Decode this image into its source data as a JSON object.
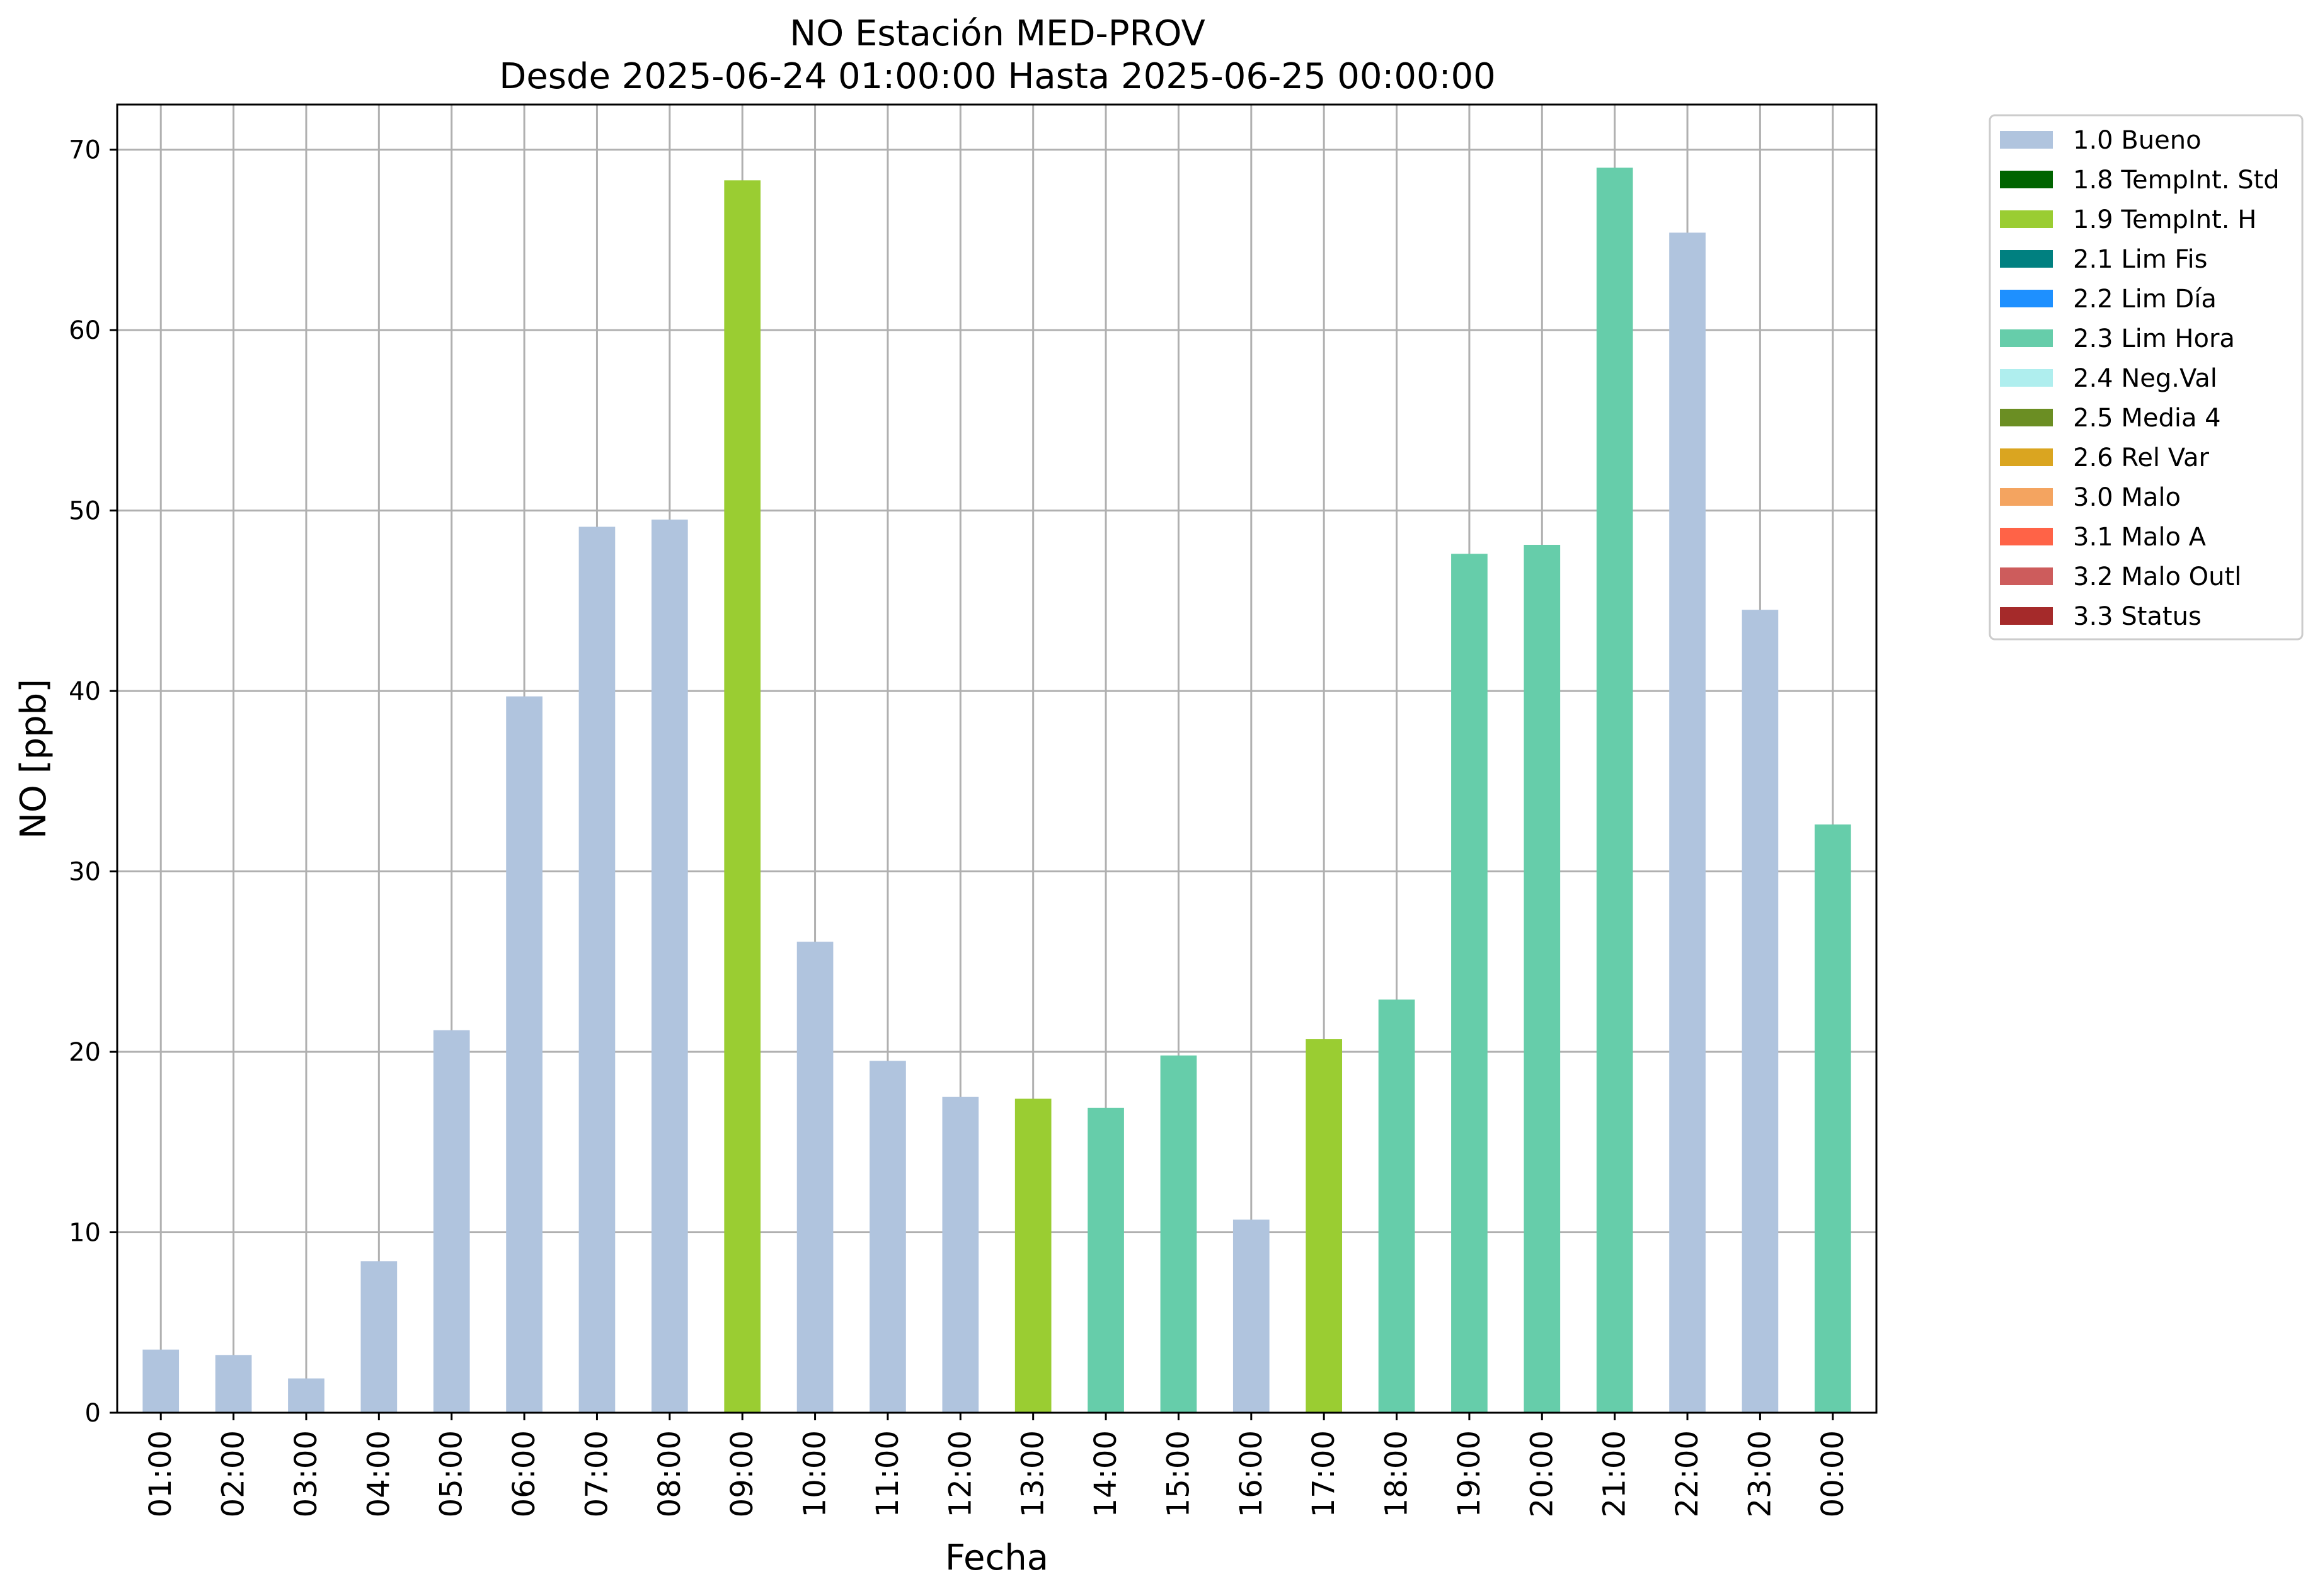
{
  "chart_data": {
    "type": "bar",
    "title": "NO Estación MED-PROV",
    "subtitle": "Desde 2025-06-24 01:00:00 Hasta 2025-06-25 00:00:00",
    "xlabel": "Fecha",
    "ylabel": "NO [ppb]",
    "ylim": [
      0,
      72.5
    ],
    "yticks": [
      0,
      10,
      20,
      30,
      40,
      50,
      60,
      70
    ],
    "grid": true,
    "legend_position": "outside-right-top",
    "categories": [
      "01:00",
      "02:00",
      "03:00",
      "04:00",
      "05:00",
      "06:00",
      "07:00",
      "08:00",
      "09:00",
      "10:00",
      "11:00",
      "12:00",
      "13:00",
      "14:00",
      "15:00",
      "16:00",
      "17:00",
      "18:00",
      "19:00",
      "20:00",
      "21:00",
      "22:00",
      "23:00",
      "00:00"
    ],
    "values": [
      3.5,
      3.2,
      1.9,
      8.4,
      21.2,
      39.7,
      49.1,
      49.5,
      68.3,
      26.1,
      19.5,
      17.5,
      17.4,
      16.9,
      19.8,
      10.7,
      20.7,
      22.9,
      47.6,
      48.1,
      69.0,
      65.4,
      44.5,
      32.6
    ],
    "flags": [
      "1.0 Bueno",
      "1.0 Bueno",
      "1.0 Bueno",
      "1.0 Bueno",
      "1.0 Bueno",
      "1.0 Bueno",
      "1.0 Bueno",
      "1.0 Bueno",
      "1.9 TempInt. H",
      "1.0 Bueno",
      "1.0 Bueno",
      "1.0 Bueno",
      "1.9 TempInt. H",
      "2.3 Lim Hora",
      "2.3 Lim Hora",
      "1.0 Bueno",
      "1.9 TempInt. H",
      "2.3 Lim Hora",
      "2.3 Lim Hora",
      "2.3 Lim Hora",
      "2.3 Lim Hora",
      "1.0 Bueno",
      "1.0 Bueno",
      "2.3 Lim Hora"
    ],
    "legend": [
      {
        "name": "1.0 Bueno",
        "color": "#b0c4de"
      },
      {
        "name": "1.8 TempInt. Std",
        "color": "#006400"
      },
      {
        "name": "1.9 TempInt. H",
        "color": "#9acd32"
      },
      {
        "name": "2.1 Lim Fis",
        "color": "#008080"
      },
      {
        "name": "2.2 Lim Día",
        "color": "#1e90ff"
      },
      {
        "name": "2.3 Lim Hora",
        "color": "#66cdaa"
      },
      {
        "name": "2.4 Neg.Val",
        "color": "#afeeee"
      },
      {
        "name": "2.5 Media 4",
        "color": "#6b8e23"
      },
      {
        "name": "2.6 Rel Var",
        "color": "#daa520"
      },
      {
        "name": "3.0 Malo",
        "color": "#f4a460"
      },
      {
        "name": "3.1 Malo A",
        "color": "#ff6347"
      },
      {
        "name": "3.2 Malo Outl",
        "color": "#cd5c5c"
      },
      {
        "name": "3.3 Status",
        "color": "#a52a2a"
      }
    ]
  }
}
